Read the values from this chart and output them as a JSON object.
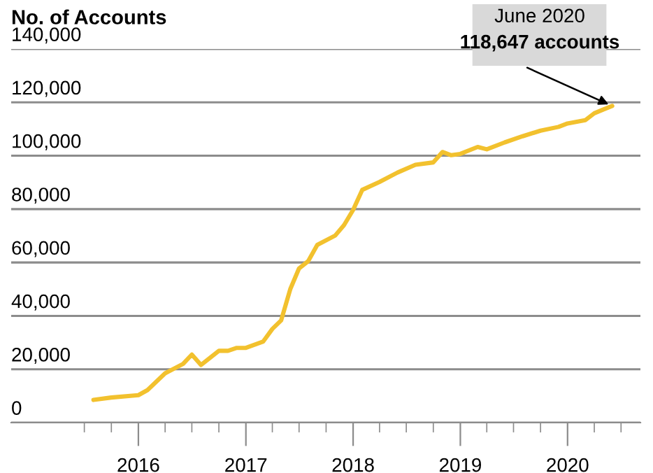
{
  "chart_data": {
    "type": "line",
    "ylabel": "No. of Accounts",
    "x": [
      "2015-08",
      "2015-10",
      "2016-01",
      "2016-02",
      "2016-04",
      "2016-06",
      "2016-07",
      "2016-08",
      "2016-10",
      "2016-11",
      "2016-12",
      "2017-01",
      "2017-03",
      "2017-04",
      "2017-05",
      "2017-06",
      "2017-07",
      "2017-08",
      "2017-09",
      "2017-11",
      "2017-12",
      "2018-01",
      "2018-02",
      "2018-04",
      "2018-06",
      "2018-08",
      "2018-10",
      "2018-11",
      "2018-12",
      "2019-01",
      "2019-03",
      "2019-04",
      "2019-06",
      "2019-08",
      "2019-10",
      "2019-12",
      "2020-01",
      "2020-03",
      "2020-04",
      "2020-05",
      "2020-06"
    ],
    "series": [
      {
        "color": "#f2c12e",
        "values": [
          8500,
          9400,
          10300,
          12200,
          18500,
          22000,
          25500,
          21600,
          26900,
          26900,
          28000,
          28000,
          30400,
          35100,
          38300,
          50000,
          57800,
          60500,
          66600,
          70100,
          74000,
          79700,
          87200,
          90200,
          93700,
          96600,
          97500,
          101400,
          100200,
          100700,
          103300,
          102400,
          105000,
          107300,
          109400,
          110800,
          112100,
          113300,
          115900,
          117300,
          118647
        ]
      }
    ],
    "xlim": [
      "2014-10-25",
      "2020-09-05"
    ],
    "xticks": [
      {
        "value": "2015-07-01",
        "label": null
      },
      {
        "value": "2015-10-01",
        "label": null
      },
      {
        "value": "2016-01-01",
        "label": "2016"
      },
      {
        "value": "2016-04-01",
        "label": null
      },
      {
        "value": "2016-07-01",
        "label": null
      },
      {
        "value": "2016-10-01",
        "label": null
      },
      {
        "value": "2017-01-01",
        "label": "2017"
      },
      {
        "value": "2017-04-01",
        "label": null
      },
      {
        "value": "2017-07-01",
        "label": null
      },
      {
        "value": "2017-10-01",
        "label": null
      },
      {
        "value": "2018-01-01",
        "label": "2018"
      },
      {
        "value": "2018-04-01",
        "label": null
      },
      {
        "value": "2018-07-01",
        "label": null
      },
      {
        "value": "2018-10-01",
        "label": null
      },
      {
        "value": "2019-01-01",
        "label": "2019"
      },
      {
        "value": "2019-04-01",
        "label": null
      },
      {
        "value": "2019-07-01",
        "label": null
      },
      {
        "value": "2019-10-01",
        "label": null
      },
      {
        "value": "2020-01-01",
        "label": "2020"
      },
      {
        "value": "2020-04-01",
        "label": null
      },
      {
        "value": "2020-07-01",
        "label": null
      }
    ],
    "ylim": [
      0,
      140000
    ],
    "yticks": [
      {
        "value": 0,
        "label": "0"
      },
      {
        "value": 20000,
        "label": "20,000"
      },
      {
        "value": 40000,
        "label": "40,000"
      },
      {
        "value": 60000,
        "label": "60,000"
      },
      {
        "value": 80000,
        "label": "80,000"
      },
      {
        "value": 100000,
        "label": "100,000"
      },
      {
        "value": 120000,
        "label": "120,000"
      },
      {
        "value": 140000,
        "label": "140,000"
      }
    ],
    "grid": "y",
    "annotations": [
      {
        "text": "June 2020\n118,647 accounts",
        "x": "2020-06",
        "y": 118647
      }
    ]
  }
}
